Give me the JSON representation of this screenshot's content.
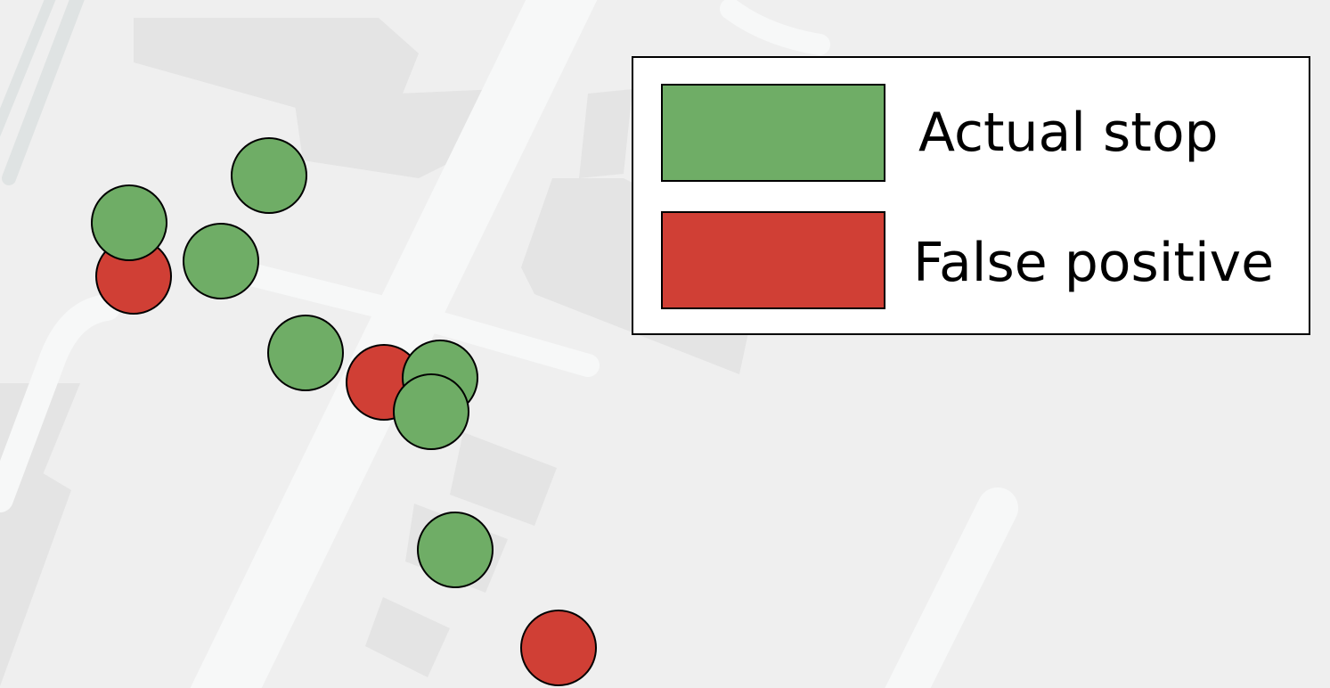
{
  "legend": {
    "items": [
      {
        "label": "Actual stop",
        "color": "#6fad66"
      },
      {
        "label": "False positive",
        "color": "#d03f35"
      }
    ]
  },
  "map_style": {
    "background": "#efefef",
    "block_fill": "#e4e4e4",
    "road_fill": "#f7f8f8",
    "rail_fill": "#dfe3e3",
    "marker_stroke": "#000000"
  },
  "markers": [
    {
      "type": "false_positive"
    },
    {
      "type": "actual_stop"
    },
    {
      "type": "actual_stop"
    },
    {
      "type": "actual_stop"
    },
    {
      "type": "actual_stop"
    },
    {
      "type": "false_positive"
    },
    {
      "type": "actual_stop"
    },
    {
      "type": "actual_stop"
    },
    {
      "type": "actual_stop"
    },
    {
      "type": "false_positive"
    }
  ]
}
